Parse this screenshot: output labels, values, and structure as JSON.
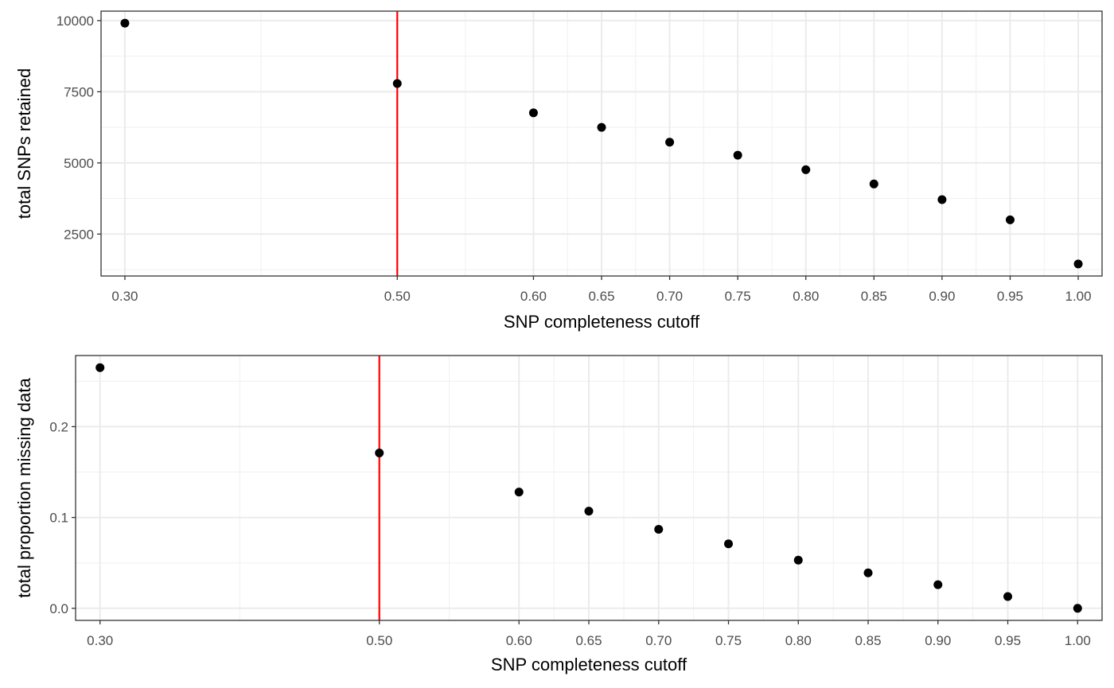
{
  "chart_data": [
    {
      "type": "scatter",
      "title": "",
      "xlabel": "SNP completeness cutoff",
      "ylabel": "total SNPs retained",
      "x": [
        0.3,
        0.5,
        0.6,
        0.65,
        0.7,
        0.75,
        0.8,
        0.85,
        0.9,
        0.95,
        1.0
      ],
      "y": [
        9910,
        7790,
        6760,
        6250,
        5730,
        5270,
        4760,
        4260,
        3710,
        3000,
        1450
      ],
      "x_ticks": [
        0.3,
        0.5,
        0.6,
        0.65,
        0.7,
        0.75,
        0.8,
        0.85,
        0.9,
        0.95,
        1.0
      ],
      "x_tick_labels": [
        "0.30",
        "0.50",
        "0.60",
        "0.65",
        "0.70",
        "0.75",
        "0.80",
        "0.85",
        "0.90",
        "0.95",
        "1.00"
      ],
      "y_ticks": [
        2500,
        5000,
        7500,
        10000
      ],
      "y_tick_labels": [
        "2500",
        "5000",
        "7500",
        "10000"
      ],
      "xlim": [
        0.2825,
        1.0175
      ],
      "ylim": [
        1027,
        10333
      ],
      "vline": {
        "x": 0.5,
        "color": "#ff0000"
      },
      "grid": true,
      "point_color": "#000000"
    },
    {
      "type": "scatter",
      "title": "",
      "xlabel": "SNP completeness cutoff",
      "ylabel": "total proportion missing data",
      "x": [
        0.3,
        0.5,
        0.6,
        0.65,
        0.7,
        0.75,
        0.8,
        0.85,
        0.9,
        0.95,
        1.0
      ],
      "y": [
        0.265,
        0.171,
        0.128,
        0.107,
        0.087,
        0.071,
        0.053,
        0.039,
        0.026,
        0.013,
        0.0
      ],
      "x_ticks": [
        0.3,
        0.5,
        0.6,
        0.65,
        0.7,
        0.75,
        0.8,
        0.85,
        0.9,
        0.95,
        1.0
      ],
      "x_tick_labels": [
        "0.30",
        "0.50",
        "0.60",
        "0.65",
        "0.70",
        "0.75",
        "0.80",
        "0.85",
        "0.90",
        "0.95",
        "1.00"
      ],
      "y_ticks": [
        0.0,
        0.1,
        0.2
      ],
      "y_tick_labels": [
        "0.0",
        "0.1",
        "0.2"
      ],
      "xlim": [
        0.2825,
        1.0175
      ],
      "ylim": [
        -0.0133,
        0.2783
      ],
      "vline": {
        "x": 0.5,
        "color": "#ff0000"
      },
      "grid": true,
      "point_color": "#000000"
    }
  ]
}
